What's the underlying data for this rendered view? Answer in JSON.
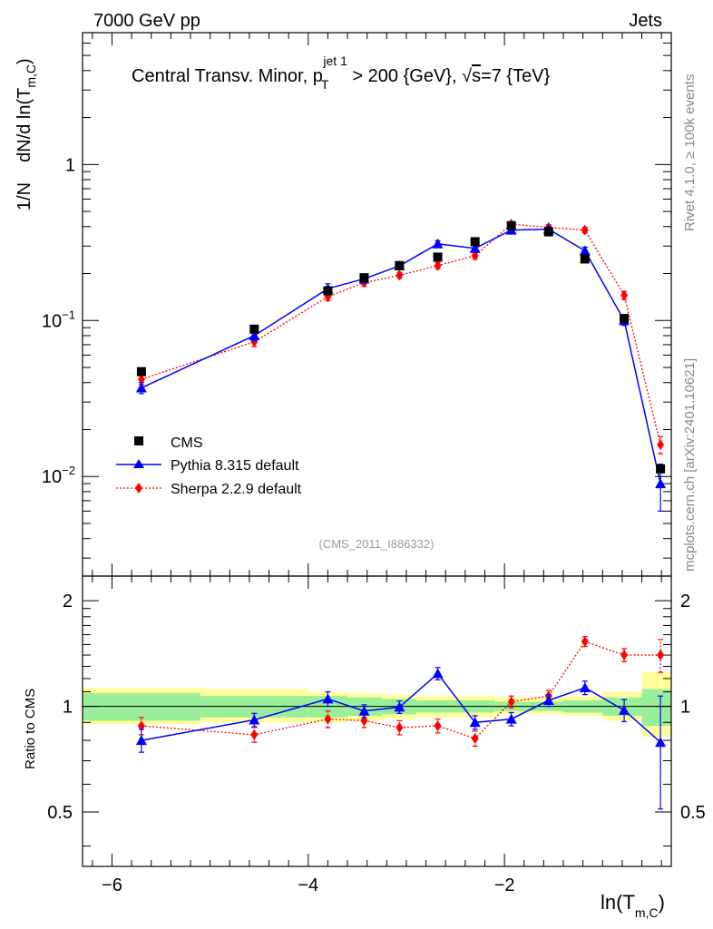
{
  "header": {
    "left": "7000 GeV pp",
    "right": "Jets",
    "side_top": "Rivet 4.1.0, ≥ 100k events",
    "side_bottom": "mcplots.cern.ch [arXiv:2401.10621]",
    "analysis_tag": "(CMS_2011_I886332)"
  },
  "chart_data": {
    "type": "scatter",
    "title_parts": {
      "t1": "Central Transv. Minor, p",
      "sub": "T",
      "sup": "jet 1",
      "t2": " > 200 {GeV}, ",
      "sqrt": "√",
      "s": "s",
      "t3": "=7 {TeV}"
    },
    "xlabel_parts": {
      "main": "ln(T",
      "sub": "m,C",
      "close": ")"
    },
    "ylabel_parts": {
      "a": "1/N",
      "b": "dN/d ln(T",
      "sub": "m,C",
      "close": ")"
    },
    "ratio_ylabel": "Ratio to CMS",
    "x_ticks": [
      {
        "v": -6,
        "label": "−6"
      },
      {
        "v": -4,
        "label": "−4"
      },
      {
        "v": -2,
        "label": "−2"
      }
    ],
    "y_ticks": [
      {
        "v": 1,
        "label": "1"
      },
      {
        "v": 0.1,
        "label": "10",
        "sup": "−1"
      },
      {
        "v": 0.01,
        "label": "10",
        "sup": "−2"
      }
    ],
    "ratio_ticks": [
      {
        "v": 2,
        "label": "2"
      },
      {
        "v": 1,
        "label": "1"
      },
      {
        "v": 0.5,
        "label": "0.5"
      }
    ],
    "xlim": [
      -6.3,
      -0.3
    ],
    "ylim": [
      0.0023,
      7
    ],
    "ratio_ylim": [
      0.35,
      2.35
    ],
    "legend": [
      {
        "name": "CMS"
      },
      {
        "name": "Pythia 8.315 default"
      },
      {
        "name": "Sherpa 2.2.9 default"
      }
    ],
    "bins": [
      {
        "lo": -6.3,
        "hi": -5.1
      },
      {
        "lo": -5.1,
        "hi": -4.0
      },
      {
        "lo": -4.0,
        "hi": -3.6
      },
      {
        "lo": -3.6,
        "hi": -3.25
      },
      {
        "lo": -3.25,
        "hi": -2.9
      },
      {
        "lo": -2.9,
        "hi": -2.5
      },
      {
        "lo": -2.5,
        "hi": -2.1
      },
      {
        "lo": -2.1,
        "hi": -1.75
      },
      {
        "lo": -1.75,
        "hi": -1.4
      },
      {
        "lo": -1.4,
        "hi": -1.0
      },
      {
        "lo": -1.0,
        "hi": -0.6
      },
      {
        "lo": -0.6,
        "hi": -0.3
      }
    ],
    "band_inner": [
      0.91,
      0.93,
      0.93,
      0.94,
      0.95,
      0.96,
      0.96,
      0.97,
      0.97,
      0.96,
      0.94,
      0.88
    ],
    "band_inner_hi": [
      1.09,
      1.07,
      1.07,
      1.06,
      1.05,
      1.04,
      1.04,
      1.03,
      1.03,
      1.04,
      1.06,
      1.12
    ],
    "band_outer": [
      0.89,
      0.9,
      0.9,
      0.91,
      0.92,
      0.93,
      0.93,
      0.95,
      0.95,
      0.94,
      0.91,
      0.82
    ],
    "band_outer_hi": [
      1.13,
      1.12,
      1.1,
      1.09,
      1.08,
      1.07,
      1.07,
      1.06,
      1.06,
      1.07,
      1.1,
      1.25
    ],
    "series": [
      {
        "name": "CMS",
        "x": [
          -5.7,
          -4.55,
          -3.8,
          -3.43,
          -3.07,
          -2.68,
          -2.3,
          -1.93,
          -1.55,
          -1.18,
          -0.78,
          -0.41
        ],
        "y": [
          0.047,
          0.088,
          0.155,
          0.188,
          0.225,
          0.255,
          0.32,
          0.405,
          0.37,
          0.248,
          0.103,
          0.0112
        ],
        "err": [
          0,
          0,
          0,
          0,
          0,
          0,
          0,
          0,
          0,
          0,
          0,
          0
        ]
      },
      {
        "name": "Pythia 8.315 default",
        "x": [
          -5.7,
          -4.55,
          -3.8,
          -3.43,
          -3.07,
          -2.68,
          -2.3,
          -1.93,
          -1.55,
          -1.18,
          -0.78,
          -0.41
        ],
        "y": [
          0.037,
          0.08,
          0.16,
          0.185,
          0.224,
          0.31,
          0.29,
          0.38,
          0.385,
          0.28,
          0.1,
          0.009
        ],
        "err": [
          0.003,
          0.006,
          0.012,
          0.01,
          0.011,
          0.015,
          0.014,
          0.015,
          0.015,
          0.015,
          0.007,
          0.003
        ],
        "ratio": [
          0.8,
          0.915,
          1.05,
          0.97,
          0.995,
          1.24,
          0.9,
          0.92,
          1.04,
          1.13,
          0.975,
          0.79
        ],
        "ratio_err": [
          0.06,
          0.04,
          0.05,
          0.04,
          0.04,
          0.05,
          0.04,
          0.04,
          0.04,
          0.05,
          0.07,
          0.28
        ]
      },
      {
        "name": "Sherpa 2.2.9 default",
        "x": [
          -5.7,
          -4.55,
          -3.8,
          -3.43,
          -3.07,
          -2.68,
          -2.3,
          -1.93,
          -1.55,
          -1.18,
          -0.78,
          -0.41
        ],
        "y": [
          0.042,
          0.073,
          0.142,
          0.175,
          0.195,
          0.225,
          0.26,
          0.415,
          0.395,
          0.38,
          0.145,
          0.016
        ],
        "err": [
          0.003,
          0.005,
          0.008,
          0.009,
          0.009,
          0.011,
          0.012,
          0.017,
          0.016,
          0.016,
          0.009,
          0.002
        ],
        "ratio": [
          0.88,
          0.83,
          0.92,
          0.91,
          0.87,
          0.88,
          0.81,
          1.03,
          1.07,
          1.53,
          1.4,
          1.4
        ],
        "ratio_err": [
          0.05,
          0.04,
          0.05,
          0.04,
          0.04,
          0.04,
          0.04,
          0.04,
          0.04,
          0.05,
          0.06,
          0.15
        ]
      }
    ]
  }
}
